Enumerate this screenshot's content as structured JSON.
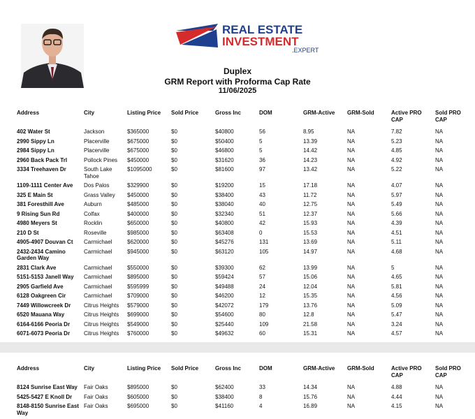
{
  "header": {
    "logo": {
      "line1": "REAL ESTATE",
      "line2": "INVESTMENT",
      "line3": ".EXPERT"
    },
    "title": "Duplex",
    "subtitle": "GRM Report with Proforma Cap Rate",
    "date": "11/06/2025"
  },
  "pages": [
    {
      "columns": [
        "Address",
        "City",
        "Listing Price",
        "Sold Price",
        "Gross Inc",
        "DOM",
        "GRM-Active",
        "GRM-Sold",
        "Active PRO CAP",
        "Sold PRO CAP"
      ],
      "rows": [
        [
          "402 Water St",
          "Jackson",
          "$365000",
          "$0",
          "$40800",
          "56",
          "8.95",
          "NA",
          "7.82",
          "NA"
        ],
        [
          "2990 Sippy Ln",
          "Placerville",
          "$675000",
          "$0",
          "$50400",
          "5",
          "13.39",
          "NA",
          "5.23",
          "NA"
        ],
        [
          "2984 Sippy Ln",
          "Placerville",
          "$675000",
          "$0",
          "$46800",
          "5",
          "14.42",
          "NA",
          "4.85",
          "NA"
        ],
        [
          "2960 Back Pack Trl",
          "Pollock Pines",
          "$450000",
          "$0",
          "$31620",
          "36",
          "14.23",
          "NA",
          "4.92",
          "NA"
        ],
        [
          "3334 Treehaven Dr",
          "South Lake Tahoe",
          "$1095000",
          "$0",
          "$81600",
          "97",
          "13.42",
          "NA",
          "5.22",
          "NA"
        ],
        [
          "1109-1111 Center Ave",
          "Dos Palos",
          "$329900",
          "$0",
          "$19200",
          "15",
          "17.18",
          "NA",
          "4.07",
          "NA"
        ],
        [
          "325 E Main St",
          "Grass Valley",
          "$450000",
          "$0",
          "$38400",
          "43",
          "11.72",
          "NA",
          "5.97",
          "NA"
        ],
        [
          "381 Foresthill Ave",
          "Auburn",
          "$485000",
          "$0",
          "$38040",
          "40",
          "12.75",
          "NA",
          "5.49",
          "NA"
        ],
        [
          "9 Rising Sun Rd",
          "Colfax",
          "$400000",
          "$0",
          "$32340",
          "51",
          "12.37",
          "NA",
          "5.66",
          "NA"
        ],
        [
          "4980 Meyers St",
          "Rocklin",
          "$650000",
          "$0",
          "$40800",
          "42",
          "15.93",
          "NA",
          "4.39",
          "NA"
        ],
        [
          "210 D St",
          "Roseville",
          "$985000",
          "$0",
          "$63408",
          "0",
          "15.53",
          "NA",
          "4.51",
          "NA"
        ],
        [
          "4905-4907 Douvan Ct",
          "Carmichael",
          "$620000",
          "$0",
          "$45276",
          "131",
          "13.69",
          "NA",
          "5.11",
          "NA"
        ],
        [
          "2432-2434 Camino Garden Way",
          "Carmichael",
          "$945000",
          "$0",
          "$63120",
          "105",
          "14.97",
          "NA",
          "4.68",
          "NA"
        ],
        [
          "2831 Clark Ave",
          "Carmichael",
          "$550000",
          "$0",
          "$39300",
          "62",
          "13.99",
          "NA",
          "5",
          "NA"
        ],
        [
          "5151-5153 Janell Way",
          "Carmichael",
          "$895000",
          "$0",
          "$59424",
          "57",
          "15.06",
          "NA",
          "4.65",
          "NA"
        ],
        [
          "2905 Garfield Ave",
          "Carmichael",
          "$595999",
          "$0",
          "$49488",
          "24",
          "12.04",
          "NA",
          "5.81",
          "NA"
        ],
        [
          "6128 Oakgreen Cir",
          "Carmichael",
          "$709000",
          "$0",
          "$46200",
          "12",
          "15.35",
          "NA",
          "4.56",
          "NA"
        ],
        [
          "7449 Willowcreek Dr",
          "Citrus Heights",
          "$579000",
          "$0",
          "$42072",
          "179",
          "13.76",
          "NA",
          "5.09",
          "NA"
        ],
        [
          "6520 Mauana Way",
          "Citrus Heights",
          "$699000",
          "$0",
          "$54600",
          "80",
          "12.8",
          "NA",
          "5.47",
          "NA"
        ],
        [
          "6164-6166 Peoria Dr",
          "Citrus Heights",
          "$549000",
          "$0",
          "$25440",
          "109",
          "21.58",
          "NA",
          "3.24",
          "NA"
        ],
        [
          "6071-6073 Peoria Dr",
          "Citrus Heights",
          "$760000",
          "$0",
          "$49632",
          "60",
          "15.31",
          "NA",
          "4.57",
          "NA"
        ]
      ]
    },
    {
      "columns": [
        "Address",
        "City",
        "Listing Price",
        "Sold Price",
        "Gross Inc",
        "DOM",
        "GRM-Active",
        "GRM-Sold",
        "Active PRO CAP",
        "Sold PRO CAP"
      ],
      "rows": [
        [
          "8124 Sunrise East Way",
          "Fair Oaks",
          "$895000",
          "$0",
          "$62400",
          "33",
          "14.34",
          "NA",
          "4.88",
          "NA"
        ],
        [
          "5425-5427 E Knoll Dr",
          "Fair Oaks",
          "$605000",
          "$0",
          "$38400",
          "8",
          "15.76",
          "NA",
          "4.44",
          "NA"
        ],
        [
          "8148-8150 Sunrise East Way",
          "Fair Oaks",
          "$695000",
          "$0",
          "$41160",
          "4",
          "16.89",
          "NA",
          "4.15",
          "NA"
        ]
      ]
    }
  ]
}
